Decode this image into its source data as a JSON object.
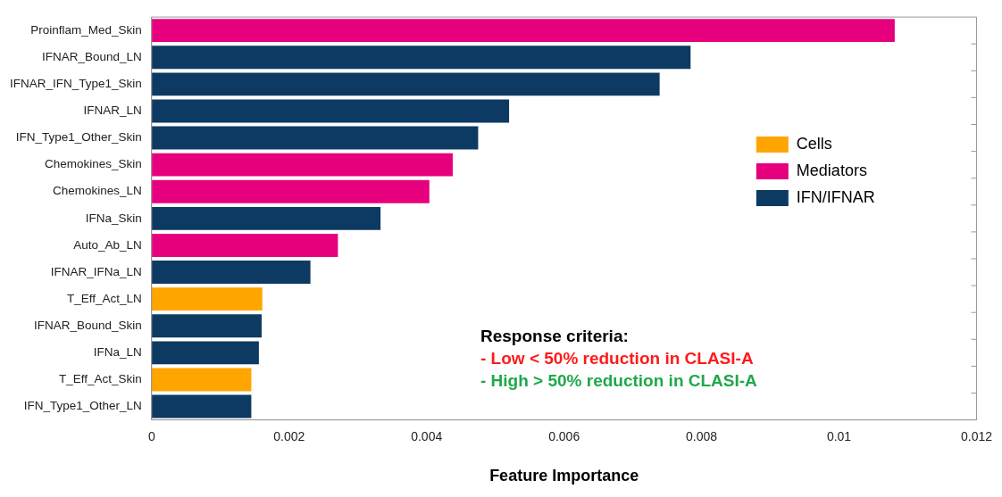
{
  "chart_data": {
    "type": "bar",
    "orientation": "horizontal",
    "xlabel": "Feature Importance",
    "categories": [
      "Proinflam_Med_Skin",
      "IFNAR_Bound_LN",
      "IFNAR_IFN_Type1_Skin",
      "IFNAR_LN",
      "IFN_Type1_Other_Skin",
      "Chemokines_Skin",
      "Chemokines_LN",
      "IFNa_Skin",
      "Auto_Ab_LN",
      "IFNAR_IFNa_LN",
      "T_Eff_Act_LN",
      "IFNAR_Bound_Skin",
      "IFNa_LN",
      "T_Eff_Act_Skin",
      "IFN_Type1_Other_LN"
    ],
    "series": [
      {
        "name": "Cells",
        "color": "#ffa500",
        "values": [
          null,
          null,
          null,
          null,
          null,
          null,
          null,
          null,
          null,
          null,
          0.00161,
          null,
          null,
          0.00145,
          null
        ]
      },
      {
        "name": "Mediators",
        "color": "#e6007e",
        "values": [
          0.01081,
          null,
          null,
          null,
          null,
          0.00438,
          0.00404,
          null,
          0.00271,
          null,
          null,
          null,
          null,
          null,
          null
        ]
      },
      {
        "name": "IFN/IFNAR",
        "color": "#0d3a63",
        "values": [
          null,
          0.00784,
          0.00739,
          0.0052,
          0.00475,
          null,
          null,
          0.00333,
          null,
          0.00231,
          null,
          0.0016,
          0.00156,
          null,
          0.00145
        ]
      }
    ],
    "xlim": [
      0,
      0.012
    ],
    "xticks": [
      0,
      0.002,
      0.004,
      0.006,
      0.008,
      0.01,
      0.012
    ],
    "grid": false,
    "legend": "right",
    "annotations": [
      "Response criteria:",
      "- Low < 50% reduction in CLASI-A",
      "- High > 50% reduction in CLASI-A"
    ]
  }
}
